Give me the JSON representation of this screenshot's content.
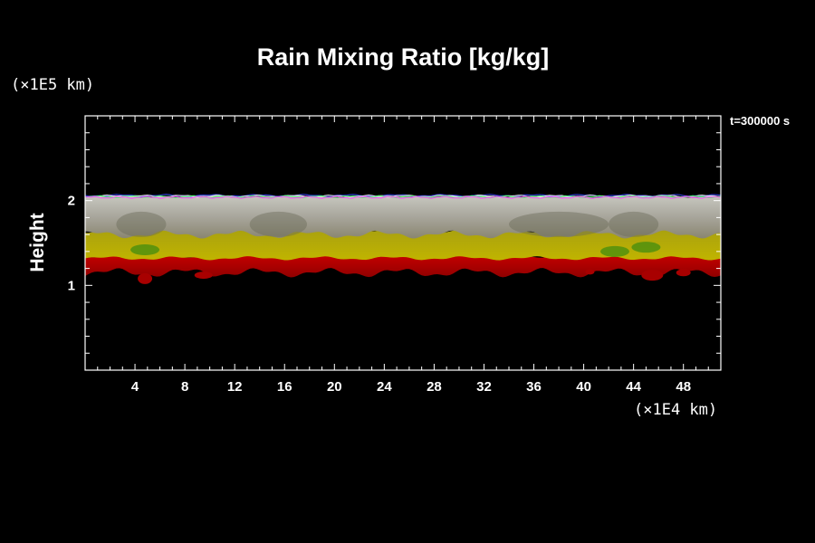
{
  "chart_data": {
    "type": "heatmap",
    "title": "Rain Mixing Ratio [kg/kg]",
    "ylabel": "Height",
    "y_unit": "(×1E5 km)",
    "x_unit": "(×1E4 km)",
    "time_label": "t=300000 s",
    "xlim": [
      0,
      51
    ],
    "ylim": [
      0,
      3
    ],
    "x_major_ticks": [
      4,
      8,
      12,
      16,
      20,
      24,
      28,
      32,
      36,
      40,
      44,
      48
    ],
    "x_tick_labels": [
      "4",
      "8",
      "12",
      "16",
      "20",
      "24",
      "28",
      "32",
      "36",
      "40",
      "44",
      "48"
    ],
    "y_major_ticks": [
      1,
      2
    ],
    "y_tick_labels": [
      "1",
      "2"
    ],
    "layers": [
      {
        "color": "#d4d4c8",
        "y_bottom": 1.6,
        "y_top": 2.05
      },
      {
        "color": "#b8b000",
        "y_bottom": 1.32,
        "y_top": 1.65
      },
      {
        "color": "#cc0000",
        "y_bottom": 1.15,
        "y_top": 1.35
      }
    ],
    "colors": {
      "background": "#000000",
      "axis": "#ffffff"
    }
  }
}
